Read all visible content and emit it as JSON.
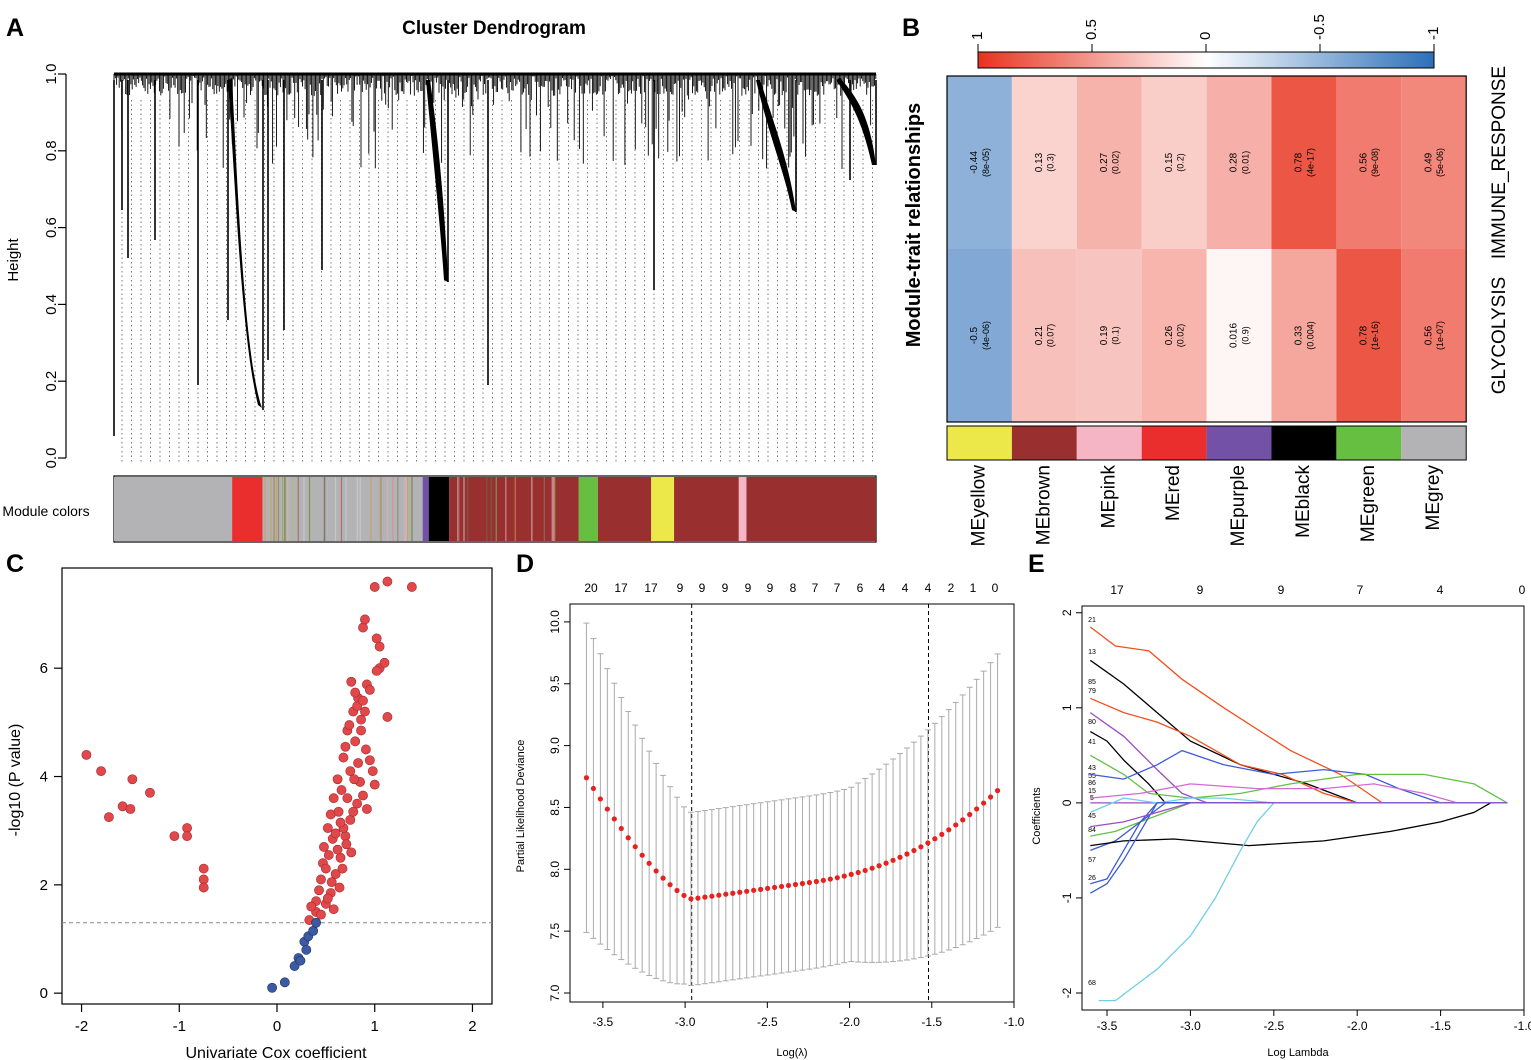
{
  "panel_labels": {
    "a": "A",
    "b": "B",
    "c": "C",
    "d": "D",
    "e": "E"
  },
  "colors": {
    "yellow": "#ece84a",
    "brown": "#99302f",
    "pink": "#f5b5c4",
    "red": "#ea2d2d",
    "purple": "#7251a6",
    "black": "#000000",
    "green": "#67bf42",
    "grey": "#b3b3b5",
    "scatter_red": "#e0484c",
    "scatter_blue": "#3b5aa3",
    "cv_red": "#e6221f",
    "heat_neg": "#2c6fb8",
    "heat_pos": "#e8331f"
  },
  "chart_data": [
    {
      "id": "A",
      "type": "dendrogram",
      "title": "Cluster Dendrogram",
      "ylabel": "Height",
      "ylim": [
        0,
        1
      ],
      "yticks": [
        "0.0",
        "0.2",
        "0.4",
        "0.6",
        "0.8",
        "1.0"
      ],
      "color_bar_label": "Module colors",
      "module_segments": [
        {
          "color": "grey",
          "start": 0.0,
          "end": 0.155
        },
        {
          "color": "red",
          "start": 0.155,
          "end": 0.195
        },
        {
          "color": "grey",
          "start": 0.195,
          "end": 0.405
        },
        {
          "color": "purple",
          "start": 0.405,
          "end": 0.413
        },
        {
          "color": "black",
          "start": 0.413,
          "end": 0.44
        },
        {
          "color": "brown",
          "start": 0.44,
          "end": 0.61
        },
        {
          "color": "green",
          "start": 0.61,
          "end": 0.635
        },
        {
          "color": "brown",
          "start": 0.635,
          "end": 0.705
        },
        {
          "color": "yellow",
          "start": 0.705,
          "end": 0.735
        },
        {
          "color": "brown",
          "start": 0.735,
          "end": 0.82
        },
        {
          "color": "pink",
          "start": 0.82,
          "end": 0.83
        },
        {
          "color": "brown",
          "start": 0.83,
          "end": 1.0
        }
      ]
    },
    {
      "id": "B",
      "type": "heatmap",
      "ylabel": "Module-trait relationships",
      "legend_ticks": [
        "1",
        "0.5",
        "0",
        "-0.5",
        "-1"
      ],
      "traits": [
        "IMMUNE_RESPONSE",
        "GLYCOLYSIS"
      ],
      "modules": [
        "MEyellow",
        "MEbrown",
        "MEpink",
        "MEred",
        "MEpurple",
        "MEblack",
        "MEgreen",
        "MEgrey"
      ],
      "module_colors": [
        "yellow",
        "brown",
        "pink",
        "red",
        "purple",
        "black",
        "green",
        "grey"
      ],
      "correlations": [
        [
          -0.44,
          0.13,
          0.27,
          0.15,
          0.28,
          0.78,
          0.56,
          0.49
        ],
        [
          -0.5,
          0.21,
          0.19,
          0.26,
          0.016,
          0.33,
          0.78,
          0.56
        ]
      ],
      "cell_labels": [
        [
          "-0.44",
          "0.13",
          "0.27",
          "0.15",
          "0.28",
          "0.78",
          "0.56",
          "0.49"
        ],
        [
          "-0.5",
          "0.21",
          "0.19",
          "0.26",
          "0.016",
          "0.33",
          "0.78",
          "0.56"
        ]
      ],
      "pvalues": [
        [
          "(8e-05)",
          "(0.3)",
          "(0.02)",
          "(0.2)",
          "(0.01)",
          "(4e-17)",
          "(9e-08)",
          "(5e-06)"
        ],
        [
          "(4e-06)",
          "(0.07)",
          "(0.1)",
          "(0.02)",
          "(0.9)",
          "(0.004)",
          "(1e-16)",
          "(1e-07)"
        ]
      ]
    },
    {
      "id": "C",
      "type": "scatter",
      "xlabel": "Univariate Cox coefficient",
      "ylabel": "-log10 (P value)",
      "xlim": [
        -2.2,
        2.2
      ],
      "ylim": [
        -0.2,
        7.85
      ],
      "xticks": [
        "-2",
        "-1",
        "0",
        "1",
        "2"
      ],
      "yticks": [
        "0",
        "2",
        "4",
        "6"
      ],
      "threshold": 1.3,
      "neg_points": [
        [
          -1.95,
          4.4
        ],
        [
          -1.8,
          4.1
        ],
        [
          -1.72,
          3.25
        ],
        [
          -1.58,
          3.45
        ],
        [
          -1.5,
          3.4
        ],
        [
          -1.48,
          3.95
        ],
        [
          -1.3,
          3.7
        ],
        [
          -1.05,
          2.9
        ],
        [
          -0.92,
          3.05
        ],
        [
          -0.92,
          2.9
        ],
        [
          -0.75,
          2.3
        ],
        [
          -0.75,
          2.1
        ],
        [
          -0.75,
          1.95
        ]
      ],
      "blue_points": [
        [
          -0.05,
          0.1
        ],
        [
          0.08,
          0.2
        ],
        [
          0.18,
          0.5
        ],
        [
          0.22,
          0.65
        ],
        [
          0.24,
          0.6
        ],
        [
          0.28,
          0.95
        ],
        [
          0.32,
          1.05
        ],
        [
          0.37,
          1.15
        ],
        [
          0.4,
          1.3
        ],
        [
          0.3,
          0.8
        ]
      ],
      "pos_points": [
        [
          1.0,
          7.5
        ],
        [
          1.13,
          7.6
        ],
        [
          1.38,
          7.5
        ],
        [
          0.88,
          6.75
        ],
        [
          0.9,
          6.9
        ],
        [
          1.02,
          6.55
        ],
        [
          1.05,
          6.4
        ],
        [
          1.05,
          6.0
        ],
        [
          1.02,
          5.95
        ],
        [
          1.1,
          6.1
        ],
        [
          1.13,
          5.1
        ],
        [
          0.92,
          5.7
        ],
        [
          0.95,
          5.6
        ],
        [
          0.83,
          5.45
        ],
        [
          0.78,
          5.2
        ],
        [
          0.86,
          5.05
        ],
        [
          0.72,
          4.85
        ],
        [
          0.8,
          4.65
        ],
        [
          0.91,
          4.5
        ],
        [
          0.95,
          4.3
        ],
        [
          0.98,
          4.1
        ],
        [
          1.0,
          3.85
        ],
        [
          0.68,
          4.35
        ],
        [
          0.62,
          3.95
        ],
        [
          0.58,
          3.6
        ],
        [
          0.55,
          3.3
        ],
        [
          0.52,
          3.05
        ],
        [
          0.48,
          2.7
        ],
        [
          0.47,
          2.4
        ],
        [
          0.45,
          2.1
        ],
        [
          0.43,
          1.9
        ],
        [
          0.4,
          1.7
        ],
        [
          0.4,
          1.5
        ],
        [
          0.45,
          1.45
        ],
        [
          0.5,
          1.65
        ],
        [
          0.55,
          1.85
        ],
        [
          0.6,
          2.2
        ],
        [
          0.65,
          2.5
        ],
        [
          0.7,
          2.9
        ],
        [
          0.75,
          3.2
        ],
        [
          0.82,
          3.5
        ],
        [
          0.85,
          3.9
        ],
        [
          0.75,
          4.1
        ],
        [
          0.66,
          3.75
        ],
        [
          0.63,
          3.35
        ],
        [
          0.57,
          2.85
        ],
        [
          0.53,
          2.55
        ],
        [
          0.5,
          2.3
        ],
        [
          0.56,
          2.05
        ],
        [
          0.62,
          2.65
        ],
        [
          0.68,
          3.05
        ],
        [
          0.72,
          3.6
        ],
        [
          0.79,
          3.95
        ],
        [
          0.83,
          4.25
        ],
        [
          0.7,
          4.55
        ],
        [
          0.74,
          4.95
        ],
        [
          0.82,
          5.3
        ],
        [
          0.88,
          5.4
        ],
        [
          0.65,
          3.15
        ],
        [
          0.6,
          2.95
        ],
        [
          0.35,
          1.6
        ],
        [
          0.33,
          1.35
        ],
        [
          0.52,
          1.75
        ],
        [
          0.58,
          1.55
        ],
        [
          0.64,
          1.95
        ],
        [
          0.67,
          2.3
        ],
        [
          0.71,
          2.75
        ],
        [
          0.76,
          2.6
        ],
        [
          0.78,
          3.35
        ],
        [
          0.88,
          3.65
        ],
        [
          0.92,
          3.4
        ],
        [
          0.86,
          4.85
        ],
        [
          0.8,
          5.55
        ],
        [
          0.76,
          5.75
        ],
        [
          0.9,
          5.2
        ]
      ]
    },
    {
      "id": "D",
      "type": "errorbar",
      "xlabel": "Log(λ)",
      "ylabel": "Partial Likelihood Deviance",
      "xlim": [
        -3.7,
        -1.0
      ],
      "ylim": [
        7.0,
        10.08
      ],
      "xticks": [
        "-3.5",
        "-3.0",
        "-2.5",
        "-2.0",
        "-1.5",
        "-1.0"
      ],
      "yticks": [
        "7.0",
        "7.5",
        "8.0",
        "8.5",
        "9.0",
        "9.5",
        "10.0"
      ],
      "top_labels": [
        "20",
        "17",
        "17",
        "9",
        "9",
        "9",
        "9",
        "9",
        "8",
        "7",
        "7",
        "6",
        "4",
        "4",
        "4",
        "2",
        "1",
        "0"
      ],
      "vlines": [
        -2.96,
        -1.52
      ]
    },
    {
      "id": "E",
      "type": "line",
      "xlabel": "Log Lambda",
      "ylabel": "Coefficients",
      "xlim": [
        -3.65,
        -1.0
      ],
      "ylim": [
        -2.2,
        2.05
      ],
      "xticks": [
        "-3.5",
        "-3.0",
        "-2.5",
        "-2.0",
        "-1.5",
        "-1.0"
      ],
      "yticks": [
        "-2",
        "-1",
        "0",
        "1",
        "2"
      ],
      "top_labels": [
        "17",
        "9",
        "9",
        "7",
        "4",
        "0"
      ],
      "side_labels": [
        "21",
        "13",
        "85",
        "79",
        "80",
        "41",
        "43",
        "55",
        "86",
        "15",
        "5",
        "45",
        "84",
        "57",
        "26",
        "68"
      ]
    }
  ]
}
